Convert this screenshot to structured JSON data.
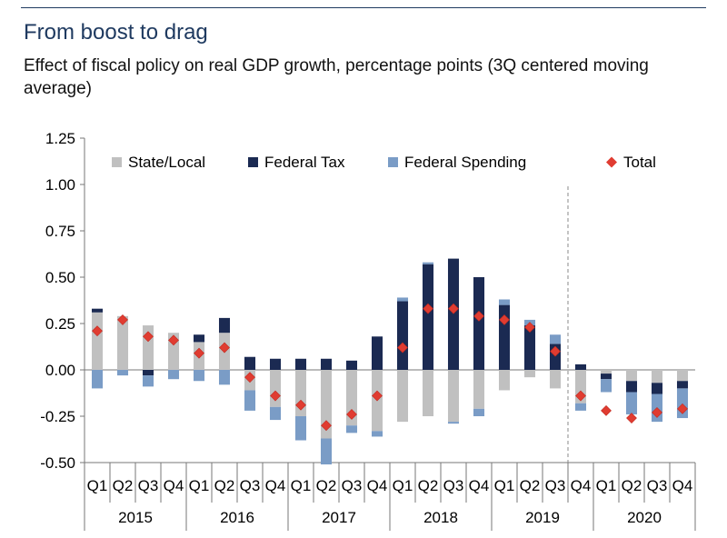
{
  "title": "From boost to drag",
  "subtitle": "Effect of fiscal policy on real GDP growth, percentage points (3Q centered moving average)",
  "chart_data": {
    "type": "bar",
    "stacked": true,
    "ylim": [
      -0.5,
      1.25
    ],
    "yticks": [
      "1.25",
      "1.00",
      "0.75",
      "0.50",
      "0.25",
      "0.00",
      "-0.25",
      "-0.50"
    ],
    "ytick_values": [
      1.25,
      1.0,
      0.75,
      0.5,
      0.25,
      0.0,
      -0.25,
      -0.5
    ],
    "quarters": [
      "Q1",
      "Q2",
      "Q3",
      "Q4",
      "Q1",
      "Q2",
      "Q3",
      "Q4",
      "Q1",
      "Q2",
      "Q3",
      "Q4",
      "Q1",
      "Q2",
      "Q3",
      "Q4",
      "Q1",
      "Q2",
      "Q3",
      "Q4",
      "Q1",
      "Q2",
      "Q3",
      "Q4"
    ],
    "years": [
      "2015",
      "2016",
      "2017",
      "2018",
      "2019",
      "2020"
    ],
    "forecast_divider_after_index": 18,
    "legend_position": "top",
    "series": [
      {
        "name": "State/Local",
        "color": "#c0c0c0",
        "kind": "bar",
        "values": [
          0.31,
          0.29,
          0.24,
          0.2,
          0.15,
          0.2,
          -0.11,
          -0.2,
          -0.25,
          -0.37,
          -0.3,
          -0.33,
          -0.28,
          -0.25,
          -0.28,
          -0.21,
          -0.11,
          -0.04,
          -0.1,
          -0.18,
          -0.02,
          -0.06,
          -0.07,
          -0.06
        ]
      },
      {
        "name": "Federal Tax",
        "color": "#1b2a52",
        "kind": "bar",
        "values": [
          0.02,
          0.0,
          -0.03,
          0.0,
          0.04,
          0.08,
          0.07,
          0.06,
          0.06,
          0.06,
          0.05,
          0.18,
          0.37,
          0.57,
          0.6,
          0.5,
          0.35,
          0.24,
          0.14,
          0.03,
          -0.03,
          -0.06,
          -0.06,
          -0.04
        ]
      },
      {
        "name": "Federal Spending",
        "color": "#7a9cc6",
        "kind": "bar",
        "values": [
          -0.1,
          -0.03,
          -0.06,
          -0.05,
          -0.06,
          -0.08,
          -0.11,
          -0.07,
          -0.13,
          -0.14,
          -0.04,
          -0.03,
          0.02,
          0.01,
          -0.01,
          -0.04,
          0.03,
          0.03,
          0.05,
          -0.04,
          -0.07,
          -0.12,
          -0.15,
          -0.16
        ]
      },
      {
        "name": "Total",
        "color": "#e03c31",
        "kind": "marker",
        "values": [
          0.21,
          0.27,
          0.18,
          0.16,
          0.09,
          0.12,
          -0.04,
          -0.14,
          -0.19,
          -0.3,
          -0.24,
          -0.14,
          0.12,
          0.33,
          0.33,
          0.29,
          0.27,
          0.23,
          0.1,
          -0.14,
          -0.22,
          -0.26,
          -0.23,
          -0.21
        ]
      }
    ]
  }
}
